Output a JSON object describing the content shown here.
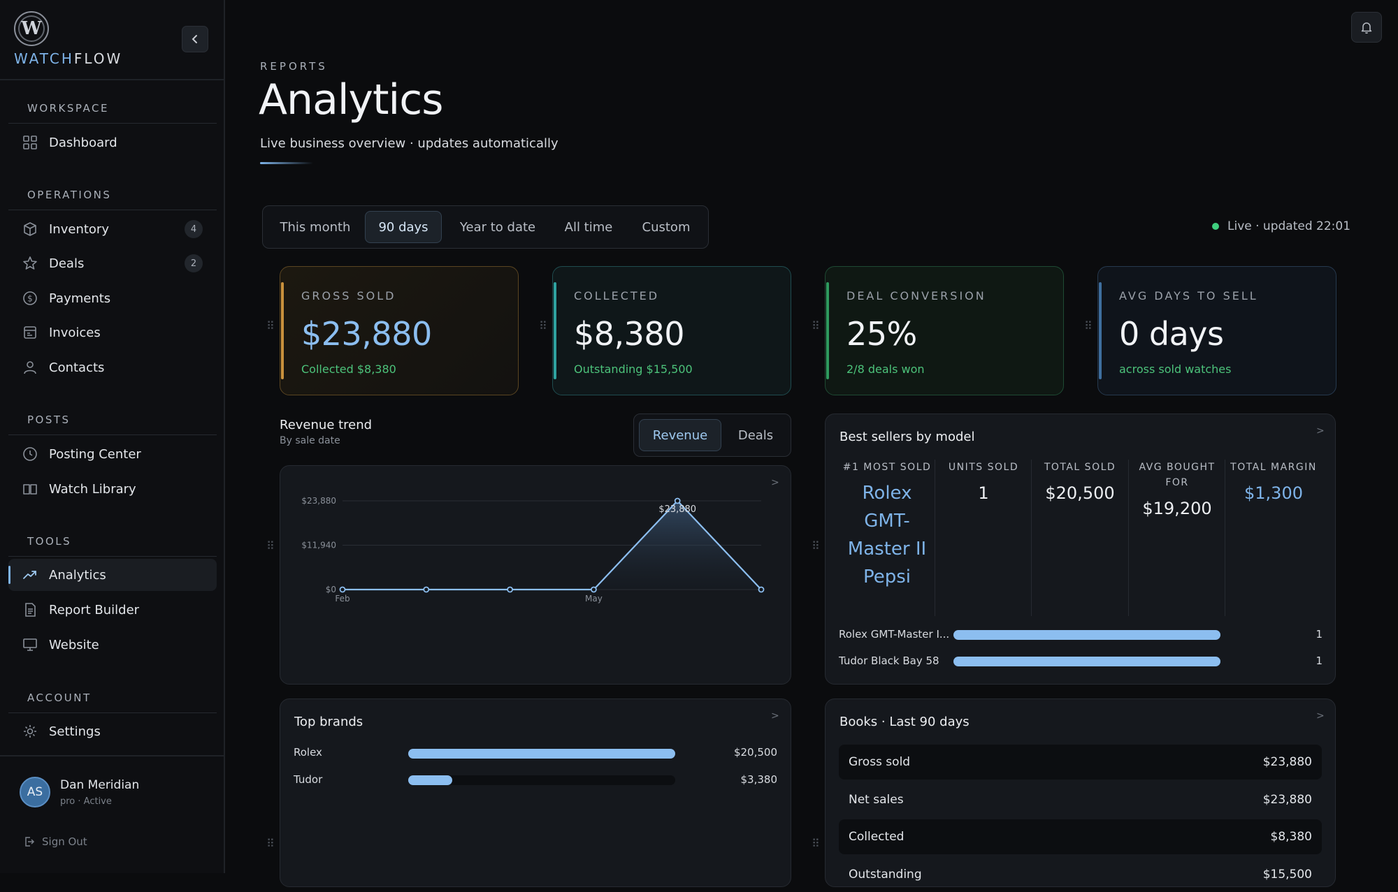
{
  "brand": {
    "logo_letter": "W",
    "name_a": "WATCH",
    "name_b": "FLOW"
  },
  "sidebar": {
    "sections": [
      {
        "title": "WORKSPACE",
        "items": [
          {
            "label": "Dashboard",
            "icon": "grid-icon"
          }
        ]
      },
      {
        "title": "OPERATIONS",
        "items": [
          {
            "label": "Inventory",
            "icon": "box-icon",
            "badge": "4"
          },
          {
            "label": "Deals",
            "icon": "star-icon",
            "badge": "2"
          },
          {
            "label": "Payments",
            "icon": "dollar-circle-icon"
          },
          {
            "label": "Invoices",
            "icon": "invoice-icon"
          },
          {
            "label": "Contacts",
            "icon": "person-icon"
          }
        ]
      },
      {
        "title": "POSTS",
        "items": [
          {
            "label": "Posting Center",
            "icon": "clock-icon"
          },
          {
            "label": "Watch Library",
            "icon": "book-icon"
          }
        ]
      },
      {
        "title": "TOOLS",
        "items": [
          {
            "label": "Analytics",
            "icon": "trend-icon",
            "active": true
          },
          {
            "label": "Report Builder",
            "icon": "document-icon"
          },
          {
            "label": "Website",
            "icon": "monitor-icon"
          }
        ]
      },
      {
        "title": "ACCOUNT",
        "items": [
          {
            "label": "Settings",
            "icon": "gear-icon"
          }
        ]
      }
    ],
    "user": {
      "initials": "AS",
      "name": "Dan Meridian",
      "status": "pro · Active"
    },
    "signout": "Sign Out"
  },
  "header": {
    "eyebrow": "REPORTS",
    "title": "Analytics",
    "subtitle": "Live business overview · updates automatically"
  },
  "periods": {
    "options": [
      "This month",
      "90 days",
      "Year to date",
      "All time",
      "Custom"
    ],
    "selected": "90 days"
  },
  "live_status": "Live · updated 22:01",
  "kpis": [
    {
      "label": "GROSS SOLD",
      "value": "$23,880",
      "sub": "Collected $8,380",
      "value_color": "#8cbef0",
      "sub_color": "#4cc27a"
    },
    {
      "label": "COLLECTED",
      "value": "$8,380",
      "sub": "Outstanding $15,500",
      "value_color": "#f1f3f6",
      "sub_color": "#4cc27a"
    },
    {
      "label": "DEAL CONVERSION",
      "value": "25%",
      "sub": "2/8 deals won",
      "value_color": "#f1f3f6",
      "sub_color": "#4cc27a"
    },
    {
      "label": "AVG DAYS TO SELL",
      "value": "0 days",
      "sub": "across sold watches",
      "value_color": "#f1f3f6",
      "sub_color": "#4cc27a"
    }
  ],
  "revenue": {
    "title": "Revenue trend",
    "subtitle": "By sale date",
    "toggle": [
      "Revenue",
      "Deals"
    ],
    "toggle_selected": "Revenue",
    "more": ">"
  },
  "chart_data": {
    "type": "area",
    "x": [
      "Feb",
      "",
      "",
      "May",
      "",
      ""
    ],
    "x_tick_labels": [
      "Feb",
      "May"
    ],
    "values": [
      0,
      0,
      0,
      0,
      23880,
      0
    ],
    "y_ticks": [
      "$23,880",
      "$11,940",
      "$0"
    ],
    "ylim": [
      0,
      23880
    ],
    "peak_label": "$23,880",
    "color": "#8cbef0"
  },
  "best_sellers": {
    "title": "Best sellers by model",
    "more": ">",
    "columns": [
      {
        "label": "#1 MOST SOLD",
        "value": "Rolex GMT-Master II Pepsi"
      },
      {
        "label": "UNITS SOLD",
        "value": "1"
      },
      {
        "label": "TOTAL SOLD",
        "value": "$20,500"
      },
      {
        "label": "AVG BOUGHT FOR",
        "value": "$19,200"
      },
      {
        "label": "TOTAL MARGIN",
        "value": "$1,300"
      }
    ],
    "rows": [
      {
        "label": "Rolex GMT-Master I...",
        "value": "1",
        "fraction": 1.0
      },
      {
        "label": "Tudor Black Bay 58",
        "value": "1",
        "fraction": 1.0
      }
    ]
  },
  "top_brands": {
    "title": "Top brands",
    "more": ">",
    "rows": [
      {
        "label": "Rolex",
        "value": "$20,500",
        "fraction": 1.0
      },
      {
        "label": "Tudor",
        "value": "$3,380",
        "fraction": 0.165
      }
    ]
  },
  "books": {
    "title": "Books · Last 90 days",
    "more": ">",
    "rows": [
      {
        "label": "Gross sold",
        "value": "$23,880"
      },
      {
        "label": "Net sales",
        "value": "$23,880"
      },
      {
        "label": "Collected",
        "value": "$8,380"
      },
      {
        "label": "Outstanding",
        "value": "$15,500"
      }
    ]
  }
}
